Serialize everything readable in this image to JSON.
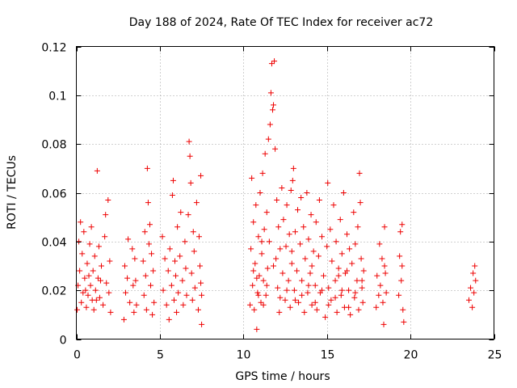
{
  "chart_data": {
    "type": "scatter",
    "title": "Day 188 of 2024, Rate Of TEC Index for receiver ac72",
    "xlabel": "GPS time / hours",
    "ylabel": "ROTI / TECUs",
    "xlim": [
      0,
      25
    ],
    "ylim": [
      0,
      0.12
    ],
    "x_ticks": [
      "0",
      "5",
      "10",
      "15",
      "20",
      "25"
    ],
    "y_ticks": [
      "0",
      "0.02",
      "0.04",
      "0.06",
      "0.08",
      "0.1",
      "0.12"
    ],
    "grid": true,
    "marker": "plus",
    "point_color": "#ee0000",
    "series": [
      {
        "points": [
          [
            0.05,
            0.012
          ],
          [
            0.1,
            0.022
          ],
          [
            0.15,
            0.04
          ],
          [
            0.2,
            0.028
          ],
          [
            0.25,
            0.048
          ],
          [
            0.3,
            0.015
          ],
          [
            0.35,
            0.035
          ],
          [
            0.4,
            0.019
          ],
          [
            0.45,
            0.044
          ],
          [
            0.5,
            0.025
          ],
          [
            0.6,
            0.013
          ],
          [
            0.65,
            0.031
          ],
          [
            0.7,
            0.018
          ],
          [
            0.8,
            0.039
          ],
          [
            0.85,
            0.022
          ],
          [
            0.9,
            0.046
          ],
          [
            0.95,
            0.016
          ],
          [
            1.0,
            0.028
          ],
          [
            1.05,
            0.012
          ],
          [
            1.1,
            0.034
          ],
          [
            1.15,
            0.02
          ],
          [
            1.25,
            0.069
          ],
          [
            1.3,
            0.025
          ],
          [
            1.35,
            0.038
          ],
          [
            1.4,
            0.017
          ],
          [
            1.5,
            0.03
          ],
          [
            1.6,
            0.014
          ],
          [
            1.7,
            0.042
          ],
          [
            1.75,
            0.051
          ],
          [
            1.8,
            0.023
          ],
          [
            1.9,
            0.057
          ],
          [
            1.95,
            0.019
          ],
          [
            2.0,
            0.032
          ],
          [
            2.05,
            0.011
          ],
          [
            0.55,
            0.02
          ],
          [
            0.75,
            0.026
          ],
          [
            1.2,
            0.016
          ],
          [
            1.45,
            0.024
          ],
          [
            2.85,
            0.008
          ],
          [
            2.9,
            0.03
          ],
          [
            2.95,
            0.019
          ],
          [
            3.1,
            0.041
          ],
          [
            3.2,
            0.015
          ],
          [
            3.35,
            0.037
          ],
          [
            3.4,
            0.022
          ],
          [
            3.45,
            0.011
          ],
          [
            3.5,
            0.033
          ],
          [
            3.55,
            0.024
          ],
          [
            3.6,
            0.014
          ],
          [
            3.05,
            0.025
          ],
          [
            4.0,
            0.032
          ],
          [
            4.05,
            0.018
          ],
          [
            4.1,
            0.044
          ],
          [
            4.15,
            0.026
          ],
          [
            4.2,
            0.012
          ],
          [
            4.25,
            0.07
          ],
          [
            4.3,
            0.056
          ],
          [
            4.35,
            0.039
          ],
          [
            4.4,
            0.047
          ],
          [
            4.45,
            0.022
          ],
          [
            4.5,
            0.035
          ],
          [
            4.55,
            0.01
          ],
          [
            4.6,
            0.028
          ],
          [
            4.65,
            0.015
          ],
          [
            5.15,
            0.042
          ],
          [
            5.2,
            0.02
          ],
          [
            5.3,
            0.033
          ],
          [
            5.4,
            0.014
          ],
          [
            5.5,
            0.028
          ],
          [
            5.55,
            0.008
          ],
          [
            5.6,
            0.037
          ],
          [
            5.7,
            0.022
          ],
          [
            5.75,
            0.059
          ],
          [
            5.8,
            0.065
          ],
          [
            5.85,
            0.016
          ],
          [
            5.9,
            0.032
          ],
          [
            5.95,
            0.026
          ],
          [
            6.0,
            0.011
          ],
          [
            6.05,
            0.046
          ],
          [
            6.1,
            0.019
          ],
          [
            6.2,
            0.034
          ],
          [
            6.25,
            0.052
          ],
          [
            6.35,
            0.024
          ],
          [
            6.4,
            0.014
          ],
          [
            6.5,
            0.04
          ],
          [
            6.55,
            0.029
          ],
          [
            6.6,
            0.018
          ],
          [
            6.7,
            0.051
          ],
          [
            6.75,
            0.081
          ],
          [
            6.8,
            0.075
          ],
          [
            6.85,
            0.064
          ],
          [
            6.9,
            0.027
          ],
          [
            6.95,
            0.016
          ],
          [
            7.0,
            0.044
          ],
          [
            7.05,
            0.036
          ],
          [
            7.1,
            0.021
          ],
          [
            7.2,
            0.056
          ],
          [
            7.3,
            0.012
          ],
          [
            7.35,
            0.042
          ],
          [
            7.4,
            0.03
          ],
          [
            7.45,
            0.067
          ],
          [
            7.5,
            0.018
          ],
          [
            7.5,
            0.006
          ],
          [
            7.45,
            0.023
          ],
          [
            10.4,
            0.014
          ],
          [
            10.45,
            0.037
          ],
          [
            10.5,
            0.066
          ],
          [
            10.55,
            0.022
          ],
          [
            10.6,
            0.048
          ],
          [
            10.65,
            0.012
          ],
          [
            10.7,
            0.031
          ],
          [
            10.75,
            0.055
          ],
          [
            10.8,
            0.004
          ],
          [
            10.85,
            0.019
          ],
          [
            10.9,
            0.042
          ],
          [
            10.95,
            0.026
          ],
          [
            11.0,
            0.06
          ],
          [
            11.05,
            0.015
          ],
          [
            11.1,
            0.035
          ],
          [
            11.15,
            0.068
          ],
          [
            11.2,
            0.024
          ],
          [
            11.25,
            0.045
          ],
          [
            11.3,
            0.076
          ],
          [
            11.35,
            0.018
          ],
          [
            11.4,
            0.052
          ],
          [
            11.45,
            0.029
          ],
          [
            11.5,
            0.082
          ],
          [
            11.55,
            0.04
          ],
          [
            11.6,
            0.088
          ],
          [
            11.65,
            0.101
          ],
          [
            11.7,
            0.113
          ],
          [
            11.75,
            0.094
          ],
          [
            11.8,
            0.096
          ],
          [
            11.85,
            0.114
          ],
          [
            11.9,
            0.078
          ],
          [
            11.95,
            0.033
          ],
          [
            12.0,
            0.057
          ],
          [
            12.05,
            0.021
          ],
          [
            12.1,
            0.046
          ],
          [
            12.15,
            0.011
          ],
          [
            12.2,
            0.037
          ],
          [
            12.3,
            0.062
          ],
          [
            12.35,
            0.027
          ],
          [
            12.4,
            0.049
          ],
          [
            12.5,
            0.016
          ],
          [
            12.55,
            0.038
          ],
          [
            12.6,
            0.055
          ],
          [
            12.7,
            0.024
          ],
          [
            12.75,
            0.043
          ],
          [
            12.8,
            0.013
          ],
          [
            12.85,
            0.061
          ],
          [
            12.9,
            0.031
          ],
          [
            12.95,
            0.065
          ],
          [
            13.0,
            0.07
          ],
          [
            13.05,
            0.02
          ],
          [
            13.1,
            0.044
          ],
          [
            13.2,
            0.028
          ],
          [
            13.25,
            0.053
          ],
          [
            13.3,
            0.015
          ],
          [
            13.4,
            0.039
          ],
          [
            13.45,
            0.058
          ],
          [
            13.5,
            0.024
          ],
          [
            13.6,
            0.046
          ],
          [
            13.65,
            0.011
          ],
          [
            13.7,
            0.033
          ],
          [
            13.8,
            0.06
          ],
          [
            13.85,
            0.019
          ],
          [
            13.9,
            0.041
          ],
          [
            14.0,
            0.027
          ],
          [
            14.05,
            0.051
          ],
          [
            14.1,
            0.014
          ],
          [
            14.2,
            0.036
          ],
          [
            14.3,
            0.022
          ],
          [
            14.35,
            0.048
          ],
          [
            14.4,
            0.012
          ],
          [
            14.5,
            0.034
          ],
          [
            14.55,
            0.057
          ],
          [
            14.6,
            0.019
          ],
          [
            14.7,
            0.042
          ],
          [
            14.8,
            0.026
          ],
          [
            14.9,
            0.009
          ],
          [
            15.0,
            0.038
          ],
          [
            15.05,
            0.064
          ],
          [
            15.1,
            0.021
          ],
          [
            15.2,
            0.045
          ],
          [
            15.25,
            0.016
          ],
          [
            15.3,
            0.032
          ],
          [
            15.4,
            0.055
          ],
          [
            15.5,
            0.024
          ],
          [
            15.55,
            0.04
          ],
          [
            15.6,
            0.011
          ],
          [
            15.7,
            0.029
          ],
          [
            15.8,
            0.049
          ],
          [
            15.85,
            0.018
          ],
          [
            15.9,
            0.035
          ],
          [
            16.0,
            0.06
          ],
          [
            16.05,
            0.013
          ],
          [
            16.1,
            0.027
          ],
          [
            16.2,
            0.043
          ],
          [
            16.3,
            0.02
          ],
          [
            16.35,
            0.037
          ],
          [
            16.4,
            0.01
          ],
          [
            16.5,
            0.031
          ],
          [
            16.6,
            0.052
          ],
          [
            16.65,
            0.017
          ],
          [
            16.7,
            0.039
          ],
          [
            16.8,
            0.024
          ],
          [
            16.85,
            0.046
          ],
          [
            16.9,
            0.012
          ],
          [
            16.95,
            0.068
          ],
          [
            17.0,
            0.056
          ],
          [
            17.05,
            0.033
          ],
          [
            17.1,
            0.021
          ],
          [
            17.15,
            0.015
          ],
          [
            17.2,
            0.028
          ],
          [
            10.6,
            0.028
          ],
          [
            10.9,
            0.018
          ],
          [
            11.2,
            0.014
          ],
          [
            11.4,
            0.022
          ],
          [
            11.8,
            0.03
          ],
          [
            12.2,
            0.017
          ],
          [
            12.6,
            0.02
          ],
          [
            13.1,
            0.016
          ],
          [
            13.5,
            0.018
          ],
          [
            13.9,
            0.022
          ],
          [
            14.3,
            0.015
          ],
          [
            14.7,
            0.02
          ],
          [
            15.1,
            0.014
          ],
          [
            15.5,
            0.017
          ],
          [
            15.9,
            0.02
          ],
          [
            16.3,
            0.013
          ],
          [
            16.7,
            0.019
          ],
          [
            17.1,
            0.024
          ],
          [
            12.9,
            0.036
          ],
          [
            14.1,
            0.03
          ],
          [
            15.7,
            0.026
          ],
          [
            16.2,
            0.028
          ],
          [
            11.1,
            0.04
          ],
          [
            10.8,
            0.025
          ],
          [
            17.95,
            0.013
          ],
          [
            18.0,
            0.026
          ],
          [
            18.1,
            0.018
          ],
          [
            18.15,
            0.039
          ],
          [
            18.2,
            0.022
          ],
          [
            18.3,
            0.033
          ],
          [
            18.35,
            0.015
          ],
          [
            18.4,
            0.006
          ],
          [
            18.45,
            0.046
          ],
          [
            18.5,
            0.027
          ],
          [
            18.55,
            0.019
          ],
          [
            18.45,
            0.03
          ],
          [
            19.3,
            0.018
          ],
          [
            19.35,
            0.034
          ],
          [
            19.4,
            0.044
          ],
          [
            19.45,
            0.024
          ],
          [
            19.5,
            0.047
          ],
          [
            19.55,
            0.012
          ],
          [
            19.6,
            0.007
          ],
          [
            19.5,
            0.03
          ],
          [
            23.5,
            0.016
          ],
          [
            23.6,
            0.021
          ],
          [
            23.7,
            0.013
          ],
          [
            23.75,
            0.027
          ],
          [
            23.8,
            0.019
          ],
          [
            23.85,
            0.03
          ],
          [
            23.9,
            0.024
          ]
        ]
      }
    ]
  }
}
